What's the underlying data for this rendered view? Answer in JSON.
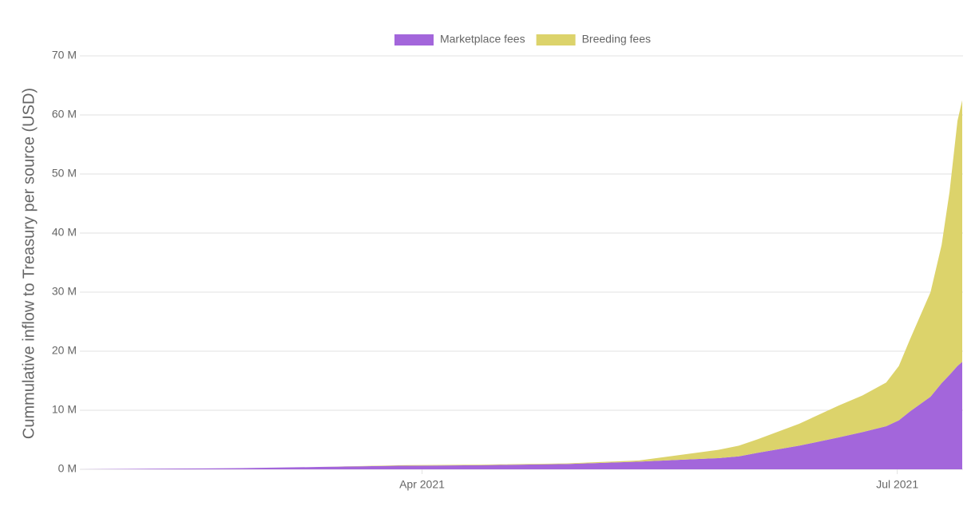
{
  "chart_data": {
    "type": "stacked-area",
    "y_label": "Cummulative inflow to Treasury per source (USD)",
    "x": [
      1.84,
      2.29,
      2.85,
      3.35,
      3.85,
      4.36,
      4.91,
      5.37,
      5.62,
      5.87,
      6.0,
      6.12,
      6.38,
      6.63,
      6.78,
      6.93,
      7.01,
      7.08,
      7.21,
      7.28,
      7.33,
      7.38,
      7.41
    ],
    "xlim": [
      1.84,
      7.41
    ],
    "xticks": [
      {
        "value": 4,
        "label": "Apr 2021"
      },
      {
        "value": 7,
        "label": "Jul 2021"
      }
    ],
    "ylim": [
      0,
      70
    ],
    "yticks": [
      {
        "value": 0,
        "label": "0 M"
      },
      {
        "value": 10,
        "label": "10 M"
      },
      {
        "value": 20,
        "label": "20 M"
      },
      {
        "value": 30,
        "label": "30 M"
      },
      {
        "value": 40,
        "label": "40 M"
      },
      {
        "value": 50,
        "label": "50 M"
      },
      {
        "value": 60,
        "label": "60 M"
      },
      {
        "value": 70,
        "label": "70 M"
      }
    ],
    "grid": true,
    "legend": "top",
    "series": [
      {
        "name": "Marketplace fees",
        "color": "#a366db",
        "values": [
          0,
          0.1,
          0.2,
          0.4,
          0.6,
          0.7,
          0.9,
          1.3,
          1.6,
          1.9,
          2.2,
          2.8,
          4.0,
          5.4,
          6.3,
          7.3,
          8.3,
          9.8,
          12.3,
          14.6,
          16.0,
          17.5,
          18.2
        ]
      },
      {
        "name": "Breeding fees",
        "color": "#dcd36b",
        "values": [
          0,
          0,
          0,
          0,
          0.1,
          0.1,
          0.1,
          0.2,
          0.8,
          1.4,
          1.8,
          2.3,
          3.7,
          5.4,
          6.2,
          7.4,
          9.2,
          12.2,
          17.7,
          23.4,
          31,
          41.5,
          44.3
        ]
      }
    ]
  }
}
